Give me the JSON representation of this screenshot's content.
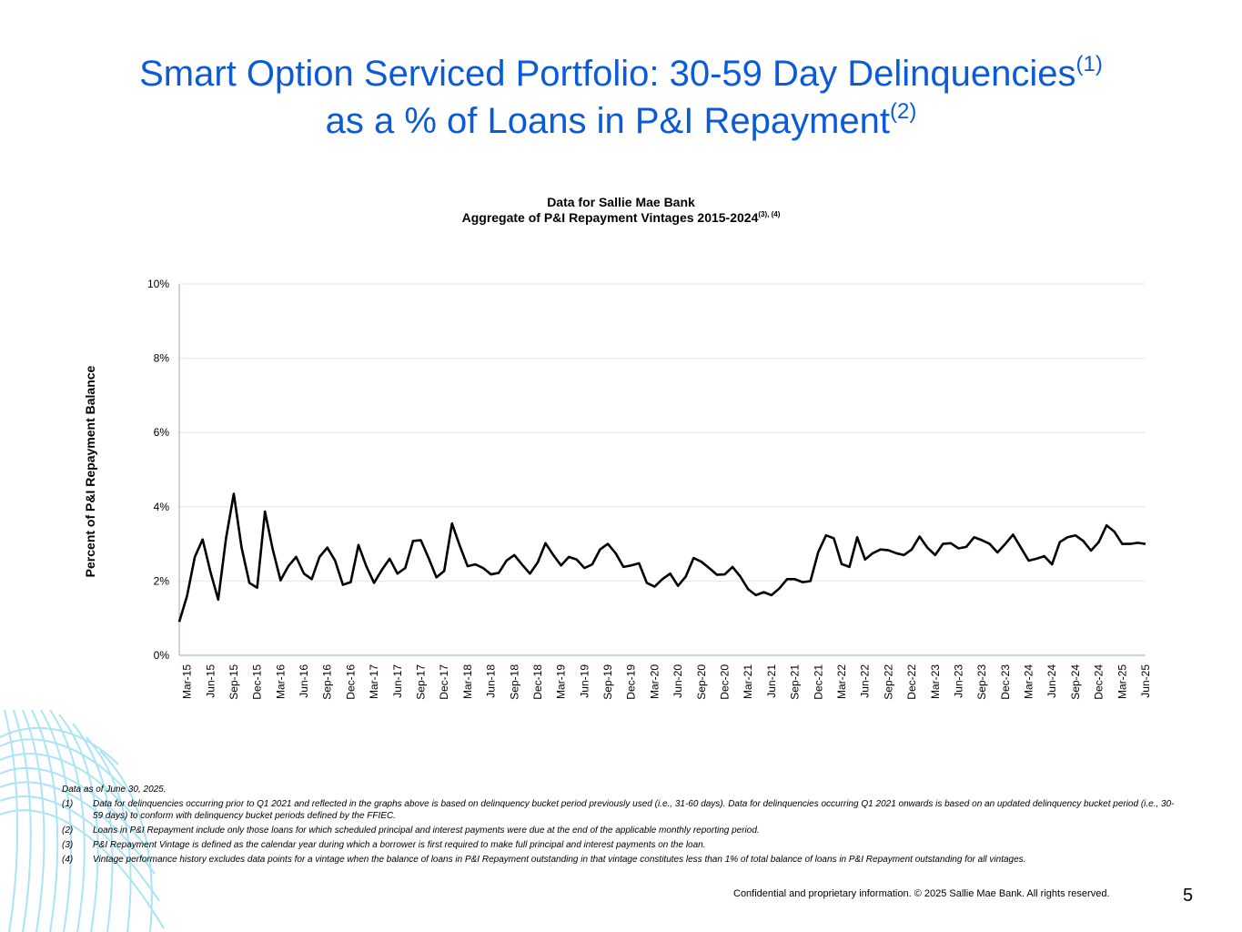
{
  "title": {
    "line1": "Smart Option Serviced Portfolio: 30-59 Day Delinquencies",
    "sup1": "(1)",
    "line2": "as a % of Loans in P&I Repayment",
    "sup2": "(2)"
  },
  "chart_data": {
    "type": "line",
    "title": "Data for Sallie Mae Bank",
    "subtitle": "Aggregate of P&I Repayment Vintages 2015-2024",
    "subtitle_sup": "(3), (4)",
    "xlabel": "",
    "ylabel": "Percent of P&I Repayment  Balance",
    "ylim": [
      0,
      10
    ],
    "yticks": [
      "0%",
      "2%",
      "4%",
      "6%",
      "8%",
      "10%"
    ],
    "ytick_values": [
      0,
      2,
      4,
      6,
      8,
      10
    ],
    "grid": true,
    "xticks": [
      "Mar-15",
      "Jun-15",
      "Sep-15",
      "Dec-15",
      "Mar-16",
      "Jun-16",
      "Sep-16",
      "Dec-16",
      "Mar-17",
      "Jun-17",
      "Sep-17",
      "Dec-17",
      "Mar-18",
      "Jun-18",
      "Sep-18",
      "Dec-18",
      "Mar-19",
      "Jun-19",
      "Sep-19",
      "Dec-19",
      "Mar-20",
      "Jun-20",
      "Sep-20",
      "Dec-20",
      "Mar-21",
      "Jun-21",
      "Sep-21",
      "Dec-21",
      "Mar-22",
      "Jun-22",
      "Sep-22",
      "Dec-22",
      "Mar-23",
      "Jun-23",
      "Sep-23",
      "Dec-23",
      "Mar-24",
      "Jun-24",
      "Sep-24",
      "Dec-24",
      "Mar-25",
      "Jun-25"
    ],
    "series": [
      {
        "name": "Aggregate 30-59 Day Delinquencies",
        "values": [
          0.9,
          1.6,
          2.65,
          3.12,
          2.25,
          1.5,
          3.15,
          4.35,
          2.9,
          1.95,
          1.82,
          3.87,
          2.85,
          2.02,
          2.4,
          2.65,
          2.2,
          2.05,
          2.65,
          2.9,
          2.55,
          1.9,
          1.97,
          2.97,
          2.4,
          1.95,
          2.3,
          2.6,
          2.2,
          2.35,
          3.08,
          3.1,
          2.62,
          2.1,
          2.27,
          3.55,
          2.95,
          2.4,
          2.45,
          2.35,
          2.18,
          2.22,
          2.55,
          2.7,
          2.44,
          2.2,
          2.5,
          3.02,
          2.7,
          2.42,
          2.65,
          2.58,
          2.35,
          2.45,
          2.85,
          3.0,
          2.75,
          2.38,
          2.42,
          2.48,
          1.95,
          1.85,
          2.05,
          2.2,
          1.87,
          2.12,
          2.62,
          2.52,
          2.35,
          2.17,
          2.18,
          2.38,
          2.12,
          1.78,
          1.62,
          1.7,
          1.62,
          1.8,
          2.05,
          2.05,
          1.97,
          2.0,
          2.78,
          3.23,
          3.15,
          2.46,
          2.38,
          3.18,
          2.58,
          2.75,
          2.85,
          2.83,
          2.75,
          2.7,
          2.85,
          3.2,
          2.9,
          2.7,
          3.0,
          3.02,
          2.88,
          2.92,
          3.18,
          3.1,
          3.0,
          2.77,
          3.0,
          3.25,
          2.9,
          2.55,
          2.6,
          2.67,
          2.45,
          3.05,
          3.18,
          3.23,
          3.08,
          2.82,
          3.05,
          3.5,
          3.33,
          3.0,
          3.0,
          3.03,
          3.0
        ]
      }
    ]
  },
  "footnotes": {
    "data_as_of": "Data as of  June 30, 2025.",
    "items": [
      {
        "num": "(1)",
        "text": "Data for delinquencies occurring prior to Q1 2021 and reflected in the graphs above is based on delinquency bucket period previously used (i.e., 31-60 days).  Data for delinquencies occurring Q1 2021 onwards is based on an updated delinquency bucket period (i.e., 30-59 days) to conform with delinquency bucket periods defined by the FFIEC."
      },
      {
        "num": "(2)",
        "text": "Loans in P&I Repayment include only those loans for which scheduled principal and interest payments were due at the end of the applicable monthly reporting period."
      },
      {
        "num": "(3)",
        "text": "P&I Repayment Vintage is defined as the calendar year during which a borrower is first required to make full principal and interest payments on the loan."
      },
      {
        "num": "(4)",
        "text": "Vintage performance history excludes data points for a vintage when the balance of loans in P&I Repayment outstanding in that vintage constitutes less than 1% of total balance of loans in P&I Repayment outstanding for all vintages."
      }
    ]
  },
  "footer": {
    "confidential": "Confidential and proprietary information. © 2025 Sallie Mae Bank. All rights reserved.",
    "page_number": "5"
  },
  "colors": {
    "title": "#0b5bd8",
    "line": "#000000",
    "grid": "#e6e6e6",
    "axis": "#8fa8c8",
    "wave": "#7dd3ee"
  }
}
